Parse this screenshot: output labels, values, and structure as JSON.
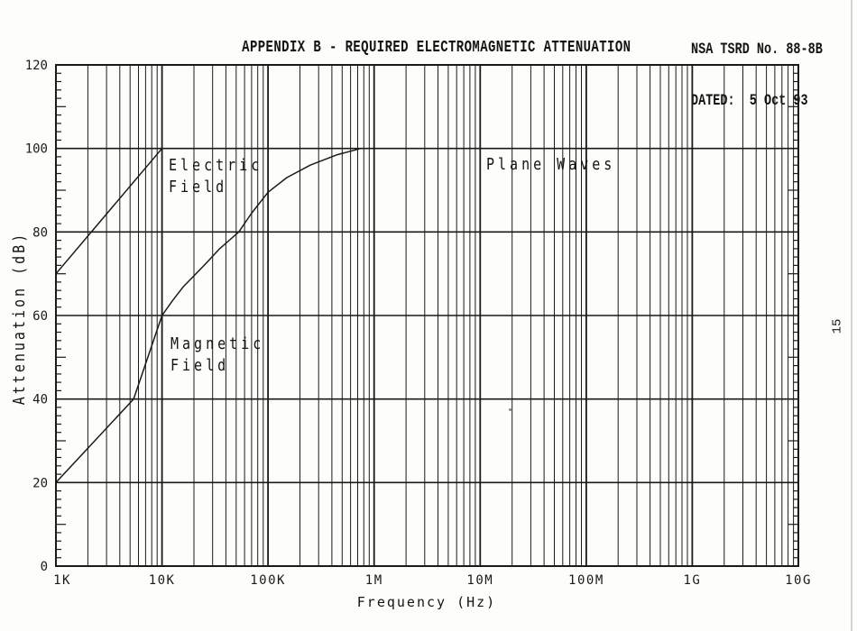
{
  "page": {
    "doc_ref": {
      "line1": "NSA TSRD No. 88-8B",
      "line2": "DATED:  5 Oct 93"
    },
    "title": "APPENDIX B - REQUIRED ELECTROMAGNETIC ATTENUATION",
    "page_number": "15"
  },
  "chart_data": {
    "type": "line",
    "title": "APPENDIX B - REQUIRED ELECTROMAGNETIC ATTENUATION",
    "xlabel": "Frequency (Hz)",
    "ylabel": "Attenuation (dB)",
    "x_scale": "log",
    "xlim": [
      1000,
      10000000000
    ],
    "ylim": [
      0,
      120
    ],
    "x_tick_labels": [
      "1K",
      "10K",
      "100K",
      "1M",
      "10M",
      "100M",
      "1G",
      "10G"
    ],
    "y_ticks": [
      0,
      20,
      40,
      60,
      80,
      100,
      120
    ],
    "y_minor_tick_step": 2,
    "grid": {
      "horizontal": "major line every 20 dB",
      "vertical": "full-height log grid, minors at 2-9 of each decade"
    },
    "ink_color": "#1a1a1a",
    "series": [
      {
        "name": "Electric Field",
        "label": "Electric\nField",
        "points": [
          [
            1000,
            70
          ],
          [
            10000,
            100
          ],
          [
            10000000000,
            100
          ]
        ]
      },
      {
        "name": "Magnetic Field",
        "label": "Magnetic\nField",
        "points": [
          [
            1000,
            20
          ],
          [
            5400,
            40
          ],
          [
            10000,
            60
          ],
          [
            12500,
            63.5
          ],
          [
            16000,
            67
          ],
          [
            20000,
            69.5
          ],
          [
            26000,
            72.5
          ],
          [
            35000,
            76
          ],
          [
            53000,
            80
          ],
          [
            70000,
            84.5
          ],
          [
            100000,
            89.5
          ],
          [
            150000,
            93
          ],
          [
            250000,
            96
          ],
          [
            450000,
            98.5
          ],
          [
            750000,
            100
          ],
          [
            10000000000,
            100
          ]
        ]
      },
      {
        "name": "Plane Waves",
        "label": "Plane Waves",
        "points": [
          [
            100000,
            100
          ],
          [
            10000000000,
            100
          ]
        ]
      }
    ]
  }
}
